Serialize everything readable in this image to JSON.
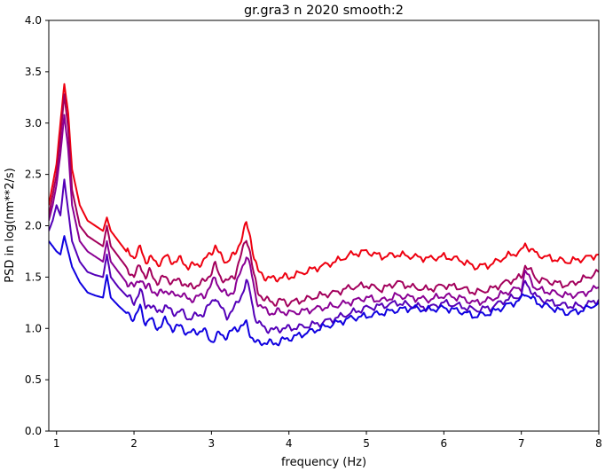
{
  "chart_data": {
    "type": "line",
    "title": "gr.gra3 n 2020 smooth:2",
    "xlabel": "frequency (Hz)",
    "ylabel": "PSD in log(nm**2/s)",
    "xlim": [
      0.9,
      8
    ],
    "ylim": [
      0,
      4
    ],
    "xticks": [
      1,
      2,
      3,
      4,
      5,
      6,
      7,
      8
    ],
    "yticks": [
      0.0,
      0.5,
      1.0,
      1.5,
      2.0,
      2.5,
      3.0,
      3.5,
      4.0
    ],
    "grid": false,
    "legend": "none",
    "series": [
      {
        "color": "#ee0010",
        "x": [
          0.9,
          0.95,
          1.0,
          1.05,
          1.1,
          1.15,
          1.2,
          1.3,
          1.4,
          1.5,
          1.6,
          1.65,
          1.7,
          1.8,
          1.9,
          2.0,
          2.08,
          2.15,
          2.2,
          2.3,
          2.4,
          2.5,
          2.6,
          2.7,
          2.8,
          2.9,
          3.0,
          3.05,
          3.1,
          3.2,
          3.3,
          3.4,
          3.45,
          3.5,
          3.55,
          3.6,
          3.7,
          3.8,
          3.9,
          4.0,
          4.2,
          4.4,
          4.6,
          4.8,
          5.0,
          5.2,
          5.4,
          5.6,
          5.8,
          6.0,
          6.2,
          6.4,
          6.6,
          6.8,
          7.0,
          7.05,
          7.2,
          7.4,
          7.6,
          7.8,
          8.0
        ],
        "y": [
          2.2,
          2.4,
          2.6,
          3.0,
          3.38,
          3.1,
          2.55,
          2.2,
          2.05,
          2.0,
          1.95,
          2.08,
          1.95,
          1.85,
          1.75,
          1.7,
          1.78,
          1.65,
          1.7,
          1.62,
          1.7,
          1.65,
          1.67,
          1.6,
          1.62,
          1.65,
          1.75,
          1.8,
          1.72,
          1.65,
          1.72,
          1.9,
          2.02,
          1.9,
          1.7,
          1.55,
          1.5,
          1.48,
          1.5,
          1.5,
          1.55,
          1.6,
          1.65,
          1.72,
          1.75,
          1.7,
          1.72,
          1.7,
          1.68,
          1.7,
          1.67,
          1.6,
          1.62,
          1.7,
          1.75,
          1.82,
          1.72,
          1.68,
          1.65,
          1.68,
          1.72
        ]
      },
      {
        "color": "#a3005c",
        "x": [
          0.9,
          0.95,
          1.0,
          1.05,
          1.1,
          1.15,
          1.2,
          1.3,
          1.4,
          1.5,
          1.6,
          1.65,
          1.7,
          1.8,
          1.9,
          2.0,
          2.08,
          2.15,
          2.2,
          2.3,
          2.4,
          2.5,
          2.6,
          2.7,
          2.8,
          2.9,
          3.0,
          3.05,
          3.1,
          3.2,
          3.3,
          3.4,
          3.45,
          3.5,
          3.55,
          3.6,
          3.7,
          3.8,
          3.9,
          4.0,
          4.2,
          4.4,
          4.6,
          4.8,
          5.0,
          5.2,
          5.4,
          5.6,
          5.8,
          6.0,
          6.2,
          6.4,
          6.6,
          6.8,
          7.0,
          7.05,
          7.2,
          7.4,
          7.6,
          7.8,
          8.0
        ],
        "y": [
          2.1,
          2.3,
          2.5,
          2.85,
          3.28,
          2.95,
          2.35,
          2.0,
          1.9,
          1.85,
          1.8,
          2.0,
          1.8,
          1.7,
          1.6,
          1.5,
          1.62,
          1.5,
          1.55,
          1.45,
          1.5,
          1.45,
          1.47,
          1.4,
          1.42,
          1.45,
          1.55,
          1.62,
          1.52,
          1.45,
          1.52,
          1.75,
          1.88,
          1.75,
          1.5,
          1.35,
          1.28,
          1.25,
          1.27,
          1.25,
          1.28,
          1.32,
          1.35,
          1.4,
          1.42,
          1.38,
          1.45,
          1.4,
          1.38,
          1.42,
          1.4,
          1.35,
          1.38,
          1.45,
          1.5,
          1.62,
          1.48,
          1.45,
          1.42,
          1.48,
          1.55
        ]
      },
      {
        "color": "#8a0094",
        "x": [
          0.9,
          0.95,
          1.0,
          1.05,
          1.1,
          1.15,
          1.2,
          1.3,
          1.4,
          1.5,
          1.6,
          1.65,
          1.7,
          1.8,
          1.9,
          2.0,
          2.08,
          2.15,
          2.2,
          2.3,
          2.4,
          2.5,
          2.6,
          2.7,
          2.8,
          2.9,
          3.0,
          3.05,
          3.1,
          3.2,
          3.3,
          3.4,
          3.45,
          3.5,
          3.55,
          3.6,
          3.7,
          3.8,
          3.9,
          4.0,
          4.2,
          4.4,
          4.6,
          4.8,
          5.0,
          5.2,
          5.4,
          5.6,
          5.8,
          6.0,
          6.2,
          6.4,
          6.6,
          6.8,
          7.0,
          7.05,
          7.2,
          7.4,
          7.6,
          7.8,
          8.0
        ],
        "y": [
          2.05,
          2.2,
          2.4,
          2.7,
          3.08,
          2.75,
          2.2,
          1.85,
          1.75,
          1.7,
          1.65,
          1.85,
          1.65,
          1.55,
          1.45,
          1.4,
          1.5,
          1.38,
          1.42,
          1.32,
          1.38,
          1.32,
          1.34,
          1.28,
          1.3,
          1.32,
          1.42,
          1.5,
          1.4,
          1.32,
          1.38,
          1.6,
          1.72,
          1.6,
          1.38,
          1.25,
          1.17,
          1.15,
          1.17,
          1.15,
          1.17,
          1.2,
          1.22,
          1.26,
          1.3,
          1.27,
          1.32,
          1.3,
          1.28,
          1.32,
          1.3,
          1.25,
          1.28,
          1.35,
          1.4,
          1.55,
          1.38,
          1.35,
          1.32,
          1.34,
          1.4
        ]
      },
      {
        "color": "#5400b8",
        "x": [
          0.9,
          0.95,
          1.0,
          1.05,
          1.1,
          1.15,
          1.2,
          1.3,
          1.4,
          1.5,
          1.6,
          1.65,
          1.7,
          1.8,
          1.9,
          2.0,
          2.08,
          2.15,
          2.2,
          2.3,
          2.4,
          2.5,
          2.6,
          2.7,
          2.8,
          2.9,
          3.0,
          3.05,
          3.1,
          3.2,
          3.3,
          3.4,
          3.45,
          3.5,
          3.55,
          3.6,
          3.7,
          3.8,
          3.9,
          4.0,
          4.2,
          4.4,
          4.6,
          4.8,
          5.0,
          5.2,
          5.4,
          5.6,
          5.8,
          6.0,
          6.2,
          6.4,
          6.6,
          6.8,
          7.0,
          7.05,
          7.2,
          7.4,
          7.6,
          7.8,
          8.0
        ],
        "y": [
          1.95,
          2.05,
          2.2,
          2.1,
          2.45,
          2.15,
          1.85,
          1.65,
          1.55,
          1.52,
          1.5,
          1.72,
          1.5,
          1.4,
          1.32,
          1.25,
          1.38,
          1.2,
          1.25,
          1.15,
          1.22,
          1.15,
          1.17,
          1.1,
          1.12,
          1.15,
          1.25,
          1.32,
          1.22,
          1.12,
          1.2,
          1.35,
          1.45,
          1.35,
          1.15,
          1.05,
          1.0,
          0.98,
          1.0,
          1.0,
          1.02,
          1.05,
          1.1,
          1.15,
          1.2,
          1.22,
          1.25,
          1.22,
          1.2,
          1.25,
          1.22,
          1.18,
          1.2,
          1.28,
          1.32,
          1.45,
          1.3,
          1.25,
          1.22,
          1.22,
          1.28
        ]
      },
      {
        "color": "#1000e0",
        "x": [
          0.9,
          0.95,
          1.0,
          1.05,
          1.1,
          1.15,
          1.2,
          1.3,
          1.4,
          1.5,
          1.6,
          1.65,
          1.7,
          1.8,
          1.9,
          2.0,
          2.08,
          2.15,
          2.2,
          2.3,
          2.4,
          2.5,
          2.6,
          2.7,
          2.8,
          2.9,
          3.0,
          3.05,
          3.1,
          3.2,
          3.3,
          3.4,
          3.45,
          3.5,
          3.55,
          3.6,
          3.7,
          3.8,
          3.9,
          4.0,
          4.2,
          4.4,
          4.6,
          4.8,
          5.0,
          5.2,
          5.4,
          5.6,
          5.8,
          6.0,
          6.2,
          6.4,
          6.6,
          6.8,
          7.0,
          7.05,
          7.2,
          7.4,
          7.6,
          7.8,
          8.0
        ],
        "y": [
          1.85,
          1.8,
          1.75,
          1.72,
          1.9,
          1.75,
          1.6,
          1.45,
          1.35,
          1.32,
          1.3,
          1.52,
          1.3,
          1.22,
          1.15,
          1.1,
          1.2,
          1.05,
          1.1,
          1.0,
          1.08,
          1.0,
          1.02,
          0.95,
          0.97,
          0.98,
          0.88,
          0.9,
          0.95,
          0.92,
          1.0,
          1.02,
          1.05,
          0.95,
          0.88,
          0.85,
          0.87,
          0.85,
          0.88,
          0.9,
          0.95,
          1.0,
          1.05,
          1.1,
          1.12,
          1.15,
          1.18,
          1.2,
          1.18,
          1.2,
          1.17,
          1.12,
          1.15,
          1.22,
          1.28,
          1.35,
          1.25,
          1.2,
          1.15,
          1.18,
          1.25
        ]
      }
    ]
  }
}
